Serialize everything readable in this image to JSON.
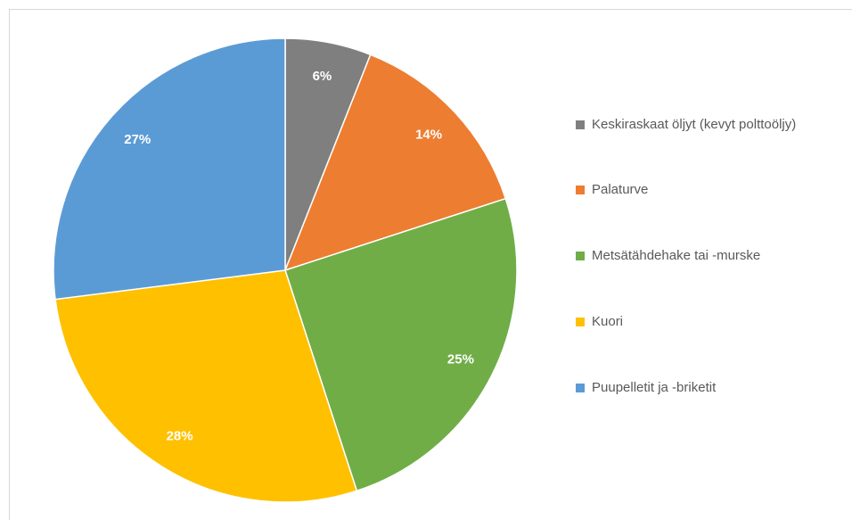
{
  "chart_data": {
    "type": "pie",
    "categories": [
      "Keskiraskaat öljyt (kevyt polttoöljy)",
      "Palaturve",
      "Metsätähdehake tai -murske",
      "Kuori",
      "Puupelletit ja -briketit"
    ],
    "values": [
      6,
      14,
      25,
      28,
      27
    ],
    "value_labels": [
      "6%",
      "14%",
      "25%",
      "28%",
      "27%"
    ],
    "colors": [
      "#7f7f7f",
      "#ed7d31",
      "#70ad47",
      "#ffc000",
      "#5b9bd5"
    ],
    "legend": "right"
  }
}
